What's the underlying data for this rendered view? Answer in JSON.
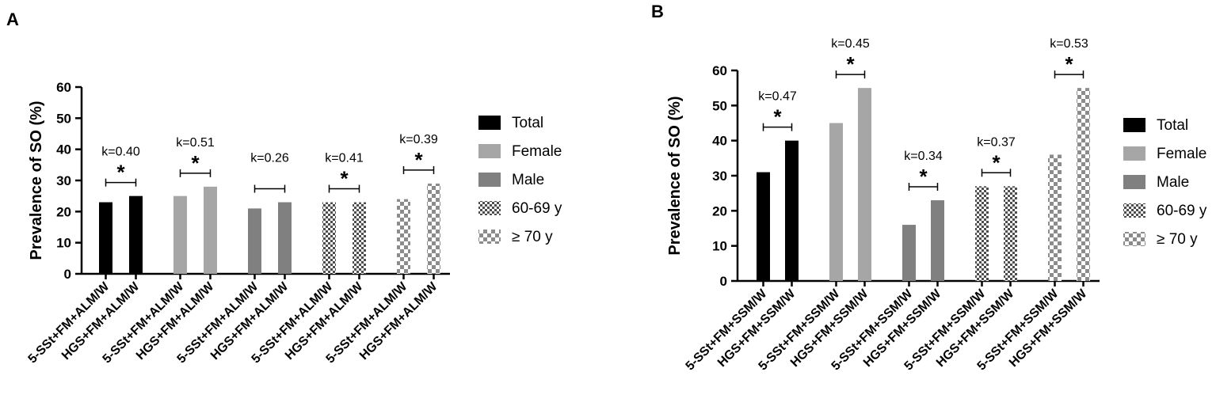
{
  "legend": {
    "items": [
      {
        "label": "Total",
        "fill": "solid",
        "color": "#000000"
      },
      {
        "label": "Female",
        "fill": "solid",
        "color": "#a6a6a6"
      },
      {
        "label": "Male",
        "fill": "solid",
        "color": "#808080"
      },
      {
        "label": "60-69 y",
        "fill": "check-small",
        "color": "#4d4d4d"
      },
      {
        "label": "≥ 70 y",
        "fill": "check-large",
        "color": "#8c8c8c"
      }
    ]
  },
  "chart_data": [
    {
      "panel": "A",
      "type": "bar",
      "ylabel": "Prevalence of SO (%)",
      "ylim": [
        0,
        60
      ],
      "yticks": [
        0,
        10,
        20,
        30,
        40,
        50,
        60
      ],
      "categories": [
        "5-SSt+FM+ALM/W",
        "HGS+FM+ALM/W",
        "5-SSt+FM+ALM/W",
        "HGS+FM+ALM/W",
        "5-SSt+FM+ALM/W",
        "HGS+FM+ALM/W",
        "5-SSt+FM+ALM/W",
        "HGS+FM+ALM/W",
        "5-SSt+FM+ALM/W",
        "HGS+FM+ALM/W"
      ],
      "groups": [
        {
          "name": "Total",
          "values": [
            23,
            25
          ],
          "kappa": "k=0.40",
          "sig": "*"
        },
        {
          "name": "Female",
          "values": [
            25,
            28
          ],
          "kappa": "k=0.51",
          "sig": "*"
        },
        {
          "name": "Male",
          "values": [
            21,
            23
          ],
          "kappa": "k=0.26",
          "sig": ""
        },
        {
          "name": "60-69 y",
          "values": [
            23,
            23
          ],
          "kappa": "k=0.41",
          "sig": "*"
        },
        {
          "name": "≥ 70 y",
          "values": [
            24,
            29
          ],
          "kappa": "k=0.39",
          "sig": "*"
        }
      ]
    },
    {
      "panel": "B",
      "type": "bar",
      "ylabel": "Prevalence of SO (%)",
      "ylim": [
        0,
        60
      ],
      "yticks": [
        0,
        10,
        20,
        30,
        40,
        50,
        60
      ],
      "categories": [
        "5-SSt+FM+SSM/W",
        "HGS+FM+SSM/W",
        "5-SSt+FM+SSM/W",
        "HGS+FM+SSM/W",
        "5-SSt+FM+SSM/W",
        "HGS+FM+SSM/W",
        "5-SSt+FM+SSM/W",
        "HGS+FM+SSM/W",
        "5-SSt+FM+SSM/W",
        "HGS+FM+SSM/W"
      ],
      "groups": [
        {
          "name": "Total",
          "values": [
            31,
            40
          ],
          "kappa": "k=0.47",
          "sig": "*"
        },
        {
          "name": "Female",
          "values": [
            45,
            55
          ],
          "kappa": "k=0.45",
          "sig": "*"
        },
        {
          "name": "Male",
          "values": [
            16,
            23
          ],
          "kappa": "k=0.34",
          "sig": "*"
        },
        {
          "name": "60-69 y",
          "values": [
            27,
            27
          ],
          "kappa": "k=0.37",
          "sig": "*"
        },
        {
          "name": "≥ 70 y",
          "values": [
            36,
            55
          ],
          "kappa": "k=0.53",
          "sig": "*"
        }
      ]
    }
  ]
}
